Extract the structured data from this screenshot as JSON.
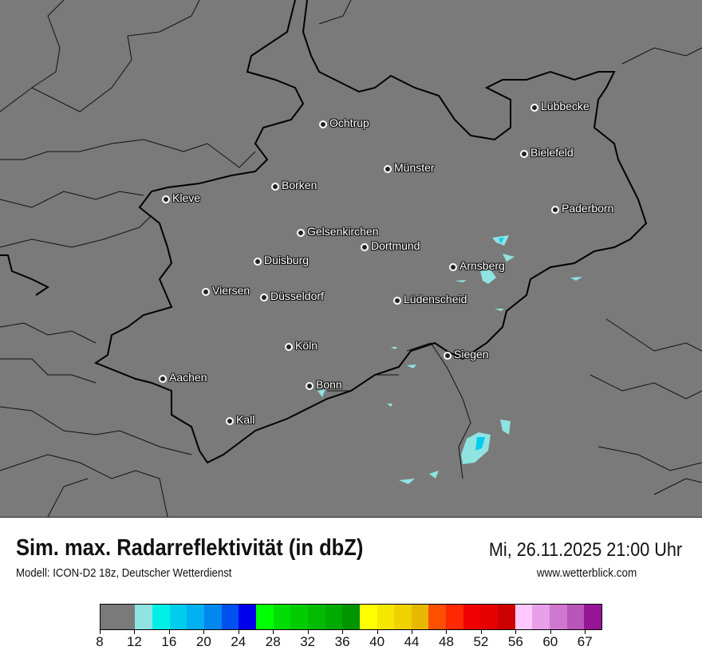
{
  "header": {
    "title": "Sim. max. Radarreflektivität (in dbZ)",
    "datetime": "Mi, 26.11.2025 21:00 Uhr",
    "model": "Modell: ICON-D2 18z, Deutscher Wetterdienst",
    "website": "www.wetterblick.com"
  },
  "map": {
    "background_color": "#7a7a7a",
    "cities": [
      {
        "name": "Lübbecke"
      },
      {
        "name": "Ochtrup"
      },
      {
        "name": "Bielefeld"
      },
      {
        "name": "Münster"
      },
      {
        "name": "Borken"
      },
      {
        "name": "Kleve"
      },
      {
        "name": "Paderborn"
      },
      {
        "name": "Gelsenkirchen"
      },
      {
        "name": "Dortmund"
      },
      {
        "name": "Duisburg"
      },
      {
        "name": "Arnsberg"
      },
      {
        "name": "Viersen"
      },
      {
        "name": "Düsseldorf"
      },
      {
        "name": "Lüdenscheid"
      },
      {
        "name": "Köln"
      },
      {
        "name": "Siegen"
      },
      {
        "name": "Aachen"
      },
      {
        "name": "Bonn"
      },
      {
        "name": "Kall"
      }
    ]
  },
  "legend": {
    "unit": "dBZ",
    "tick_labels": [
      "8",
      "12",
      "16",
      "20",
      "24",
      "28",
      "32",
      "36",
      "40",
      "44",
      "48",
      "52",
      "56",
      "60",
      "67"
    ],
    "colors": [
      "#7a7a7a",
      "#8fe3e0",
      "#00f0e8",
      "#00ccee",
      "#00b0f0",
      "#0088f0",
      "#0050f0",
      "#0000ee",
      "#00ff00",
      "#00dd00",
      "#00cc00",
      "#00bb00",
      "#00aa00",
      "#009400",
      "#ffff00",
      "#f5e800",
      "#f0d200",
      "#e8b800",
      "#ff5000",
      "#ff2800",
      "#f00000",
      "#e60000",
      "#cc0000",
      "#ffc8ff",
      "#e8a0e8",
      "#d078d0",
      "#b855b8",
      "#961496"
    ]
  }
}
